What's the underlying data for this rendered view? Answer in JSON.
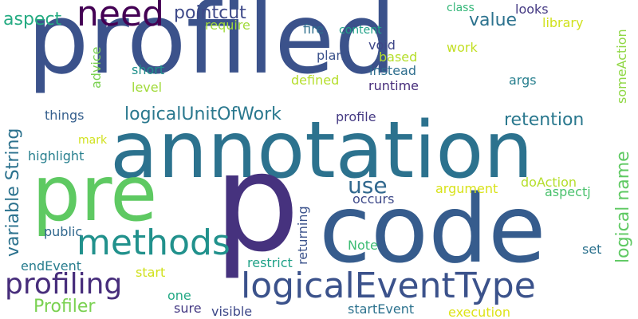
{
  "words": {
    "profiled": {
      "text": "profiled",
      "color": "#3b528b"
    },
    "annotation": {
      "text": "annotation",
      "color": "#2c728e"
    },
    "p": {
      "text": "p",
      "color": "#46327e"
    },
    "code": {
      "text": "code",
      "color": "#365c8d"
    },
    "pre": {
      "text": "pre",
      "color": "#5ec962"
    },
    "need": {
      "text": "need",
      "color": "#440154"
    },
    "methods": {
      "text": "methods",
      "color": "#21918c"
    },
    "logicalEventType": {
      "text": "logicalEventType",
      "color": "#3b528b"
    },
    "profiling": {
      "text": "profiling",
      "color": "#472d7b"
    },
    "pointcut": {
      "text": "pointcut",
      "color": "#3e4989"
    },
    "logicalUnitOfWork": {
      "text": "logicalUnitOfWork",
      "color": "#2a788e"
    },
    "use": {
      "text": "use",
      "color": "#31688e"
    },
    "value": {
      "text": "value",
      "color": "#2c728e"
    },
    "retention": {
      "text": "retention",
      "color": "#2a788e"
    },
    "aspect": {
      "text": "aspect",
      "color": "#25ab82"
    },
    "variable_string": {
      "text": "variable String",
      "color": "#2c728e"
    },
    "logical_name": {
      "text": "logical name",
      "color": "#5ec962"
    },
    "profiler": {
      "text": "Profiler",
      "color": "#7ad151"
    },
    "looks": {
      "text": "looks",
      "color": "#443983"
    },
    "class": {
      "text": "class",
      "color": "#35b779"
    },
    "require": {
      "text": "require",
      "color": "#a0da39"
    },
    "fire": {
      "text": "fire",
      "color": "#2e6e8e"
    },
    "content": {
      "text": "content",
      "color": "#1fa187"
    },
    "library": {
      "text": "library",
      "color": "#d0e11c"
    },
    "void": {
      "text": "void",
      "color": "#3f4788"
    },
    "work": {
      "text": "work",
      "color": "#c2df23"
    },
    "plan": {
      "text": "plan",
      "color": "#3b528b"
    },
    "based": {
      "text": "based",
      "color": "#b5de2b"
    },
    "advice": {
      "text": "advice",
      "color": "#7ad151"
    },
    "short": {
      "text": "short",
      "color": "#21918c"
    },
    "instead": {
      "text": "instead",
      "color": "#2e6e8e"
    },
    "level": {
      "text": "level",
      "color": "#a0da39"
    },
    "defined": {
      "text": "defined",
      "color": "#b5de2b"
    },
    "runtime": {
      "text": "runtime",
      "color": "#472d7b"
    },
    "args": {
      "text": "args",
      "color": "#277f8e"
    },
    "someAction": {
      "text": "someAction",
      "color": "#8fd744"
    },
    "things": {
      "text": "things",
      "color": "#355f8d"
    },
    "profile": {
      "text": "profile",
      "color": "#443983"
    },
    "mark": {
      "text": "mark",
      "color": "#d0e11c"
    },
    "highlight": {
      "text": "highlight",
      "color": "#277f8e"
    },
    "occurs": {
      "text": "occurs",
      "color": "#3e4989"
    },
    "argument": {
      "text": "argument",
      "color": "#d8e219"
    },
    "doAction": {
      "text": "doAction",
      "color": "#b5de2b"
    },
    "aspectj": {
      "text": "aspectj",
      "color": "#4ac16d"
    },
    "returning": {
      "text": "returning",
      "color": "#3b528b"
    },
    "public": {
      "text": "public",
      "color": "#31688e"
    },
    "note": {
      "text": "Note",
      "color": "#3dbc74"
    },
    "set": {
      "text": "set",
      "color": "#2c728e"
    },
    "endEvent": {
      "text": "endEvent",
      "color": "#287d8e"
    },
    "restrict": {
      "text": "restrict",
      "color": "#1fa187"
    },
    "start": {
      "text": "start",
      "color": "#d0e11c"
    },
    "one": {
      "text": "one",
      "color": "#22a884"
    },
    "sure": {
      "text": "sure",
      "color": "#443983"
    },
    "visible": {
      "text": "visible",
      "color": "#3e4989"
    },
    "startEvent": {
      "text": "startEvent",
      "color": "#2c728e"
    },
    "execution": {
      "text": "execution",
      "color": "#dde318"
    }
  }
}
